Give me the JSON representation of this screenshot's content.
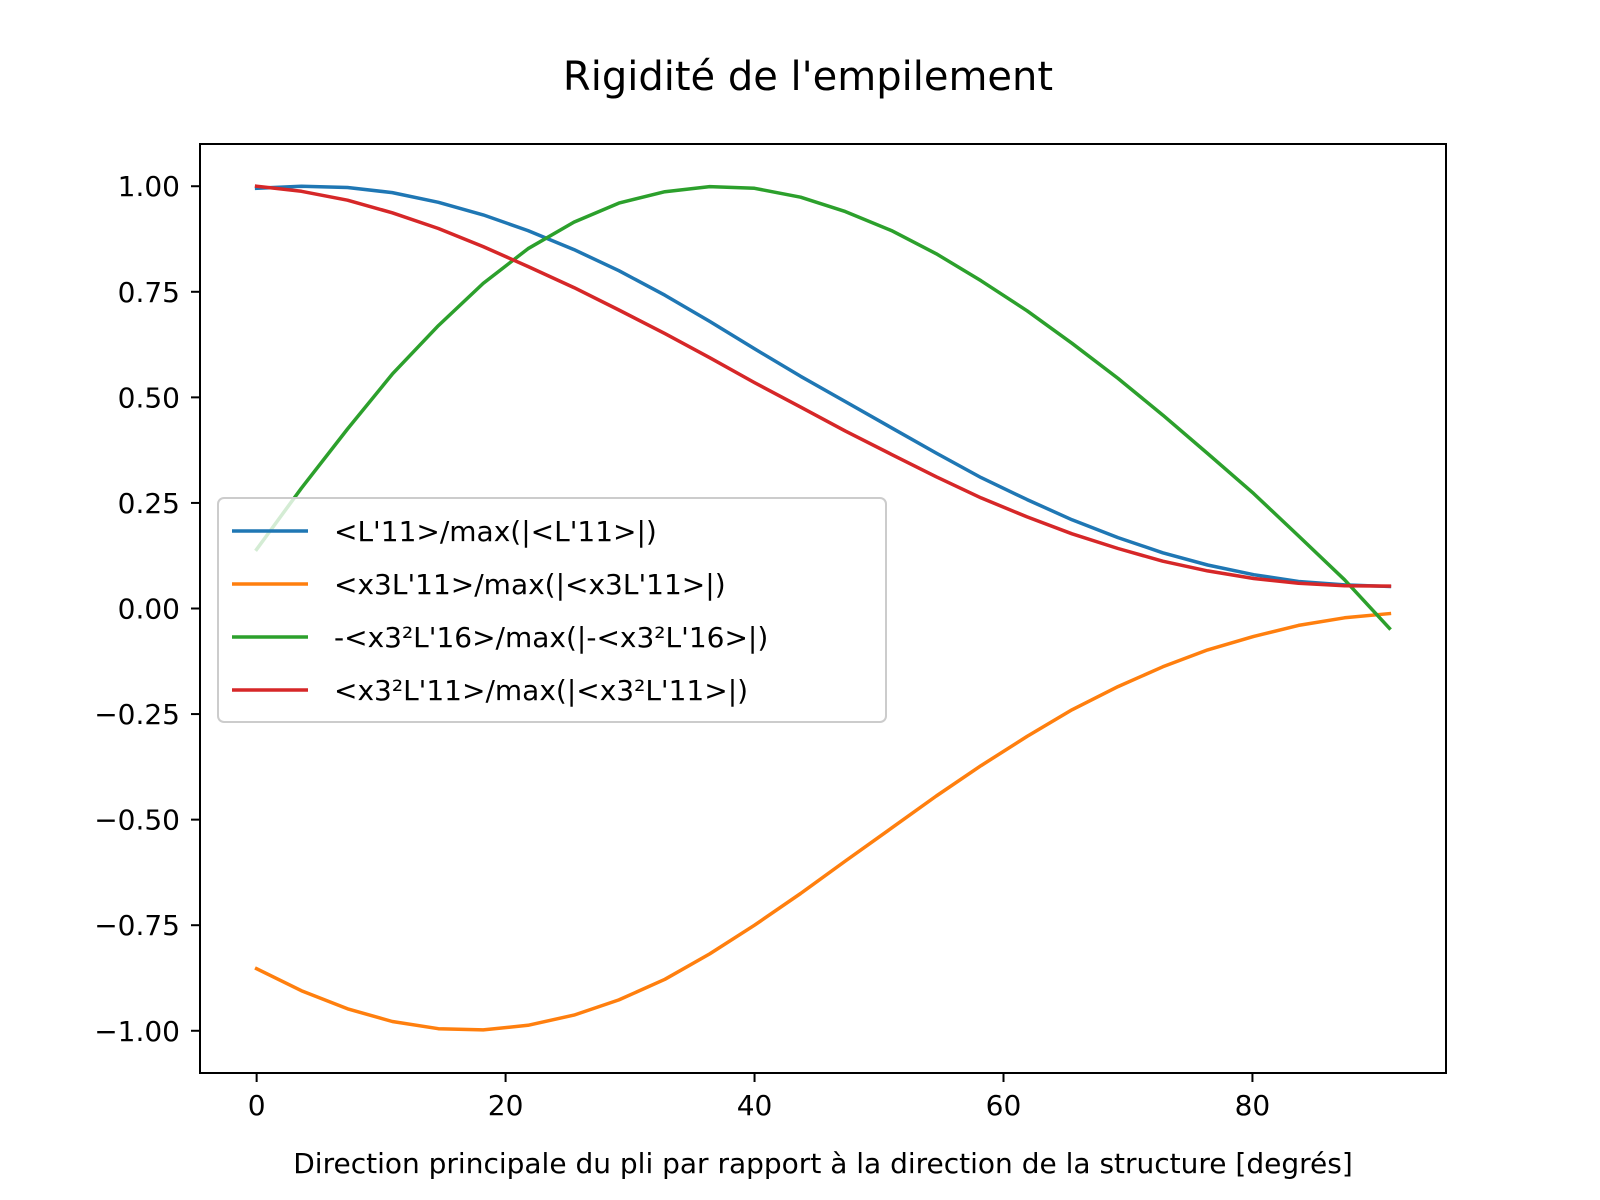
{
  "chart_data": {
    "type": "line",
    "title": "Rigidité de l'empilement",
    "xlabel": "Direction principale du pli par rapport à la direction de la structure [degrés]",
    "ylabel": "",
    "xlim": [
      -4.55,
      95.55
    ],
    "ylim": [
      -1.1,
      1.1
    ],
    "x_ticks": [
      0,
      20,
      40,
      60,
      80
    ],
    "y_ticks": [
      1.0,
      0.75,
      0.5,
      0.25,
      0.0,
      -0.25,
      -0.5,
      -0.75,
      -1.0
    ],
    "x_tick_labels": [
      "0",
      "20",
      "40",
      "60",
      "80"
    ],
    "y_tick_labels": [
      "1.00",
      "0.75",
      "0.50",
      "0.25",
      "0.00",
      "−0.25",
      "−0.50",
      "−0.75",
      "−1.00"
    ],
    "grid": false,
    "legend_position": "center-left",
    "x": [
      0,
      3.6,
      7.3,
      10.9,
      14.6,
      18.2,
      21.8,
      25.5,
      29.1,
      32.8,
      36.4,
      40.0,
      43.7,
      47.3,
      51.0,
      54.6,
      58.2,
      61.9,
      65.5,
      69.2,
      72.8,
      76.4,
      80.1,
      83.7,
      87.4,
      91.0
    ],
    "series": [
      {
        "name": "<L'11>/max(|<L'11>|)",
        "color": "#1f77b4",
        "values": [
          0.995,
          1.0,
          0.997,
          0.985,
          0.962,
          0.932,
          0.895,
          0.85,
          0.8,
          0.742,
          0.68,
          0.615,
          0.55,
          0.49,
          0.428,
          0.368,
          0.31,
          0.258,
          0.21,
          0.168,
          0.132,
          0.103,
          0.08,
          0.064,
          0.056,
          0.052
        ]
      },
      {
        "name": "<x3L'11>/max(|<x3L'11>|)",
        "color": "#ff7f0e",
        "values": [
          -0.853,
          -0.905,
          -0.948,
          -0.978,
          -0.995,
          -0.998,
          -0.987,
          -0.963,
          -0.927,
          -0.878,
          -0.818,
          -0.75,
          -0.675,
          -0.598,
          -0.52,
          -0.444,
          -0.372,
          -0.303,
          -0.24,
          -0.185,
          -0.138,
          -0.098,
          -0.066,
          -0.04,
          -0.022,
          -0.012
        ]
      },
      {
        "name": "-<x3²L'16>/max(|-<x3²L'16>|)",
        "color": "#2ca02c",
        "values": [
          0.14,
          0.285,
          0.425,
          0.555,
          0.67,
          0.77,
          0.852,
          0.915,
          0.96,
          0.987,
          0.999,
          0.995,
          0.974,
          0.94,
          0.895,
          0.84,
          0.776,
          0.705,
          0.628,
          0.545,
          0.458,
          0.367,
          0.272,
          0.172,
          0.068,
          -0.047
        ]
      },
      {
        "name": "<x3²L'11>/max(|<x3²L'11>|)",
        "color": "#d62728",
        "values": [
          1.0,
          0.988,
          0.967,
          0.937,
          0.9,
          0.857,
          0.81,
          0.76,
          0.707,
          0.651,
          0.594,
          0.535,
          0.477,
          0.42,
          0.365,
          0.312,
          0.262,
          0.217,
          0.177,
          0.142,
          0.112,
          0.089,
          0.071,
          0.06,
          0.054,
          0.053
        ]
      }
    ]
  }
}
